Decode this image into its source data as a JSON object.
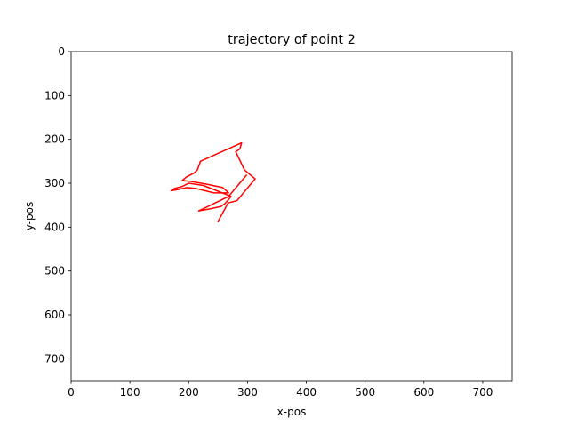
{
  "chart_data": {
    "type": "line",
    "title": "trajectory of point 2",
    "xlabel": "x-pos",
    "ylabel": "y-pos",
    "xlim": [
      0,
      750
    ],
    "ylim": [
      750,
      0
    ],
    "y_inverted": true,
    "grid": false,
    "xticks": [
      "0",
      "100",
      "200",
      "300",
      "400",
      "500",
      "600",
      "700"
    ],
    "yticks": [
      "0",
      "100",
      "200",
      "300",
      "400",
      "500",
      "600",
      "700"
    ],
    "series": [
      {
        "color": "#ff0000",
        "x": [
          298,
          268,
          253,
          245,
          230,
          217,
          238,
          255,
          262,
          268,
          272,
          225,
          200,
          188,
          176,
          170,
          180,
          197,
          212,
          243,
          268,
          258,
          230,
          204,
          189,
          196,
          210,
          215,
          220,
          290,
          287,
          280,
          295,
          313,
          282,
          267,
          250
        ],
        "y": [
          282,
          330,
          340,
          345,
          355,
          363,
          358,
          353,
          346,
          337,
          330,
          305,
          300,
          308,
          312,
          317,
          315,
          310,
          312,
          322,
          322,
          310,
          302,
          296,
          294,
          286,
          276,
          269,
          250,
          208,
          222,
          228,
          270,
          290,
          340,
          345,
          387
        ]
      }
    ]
  }
}
